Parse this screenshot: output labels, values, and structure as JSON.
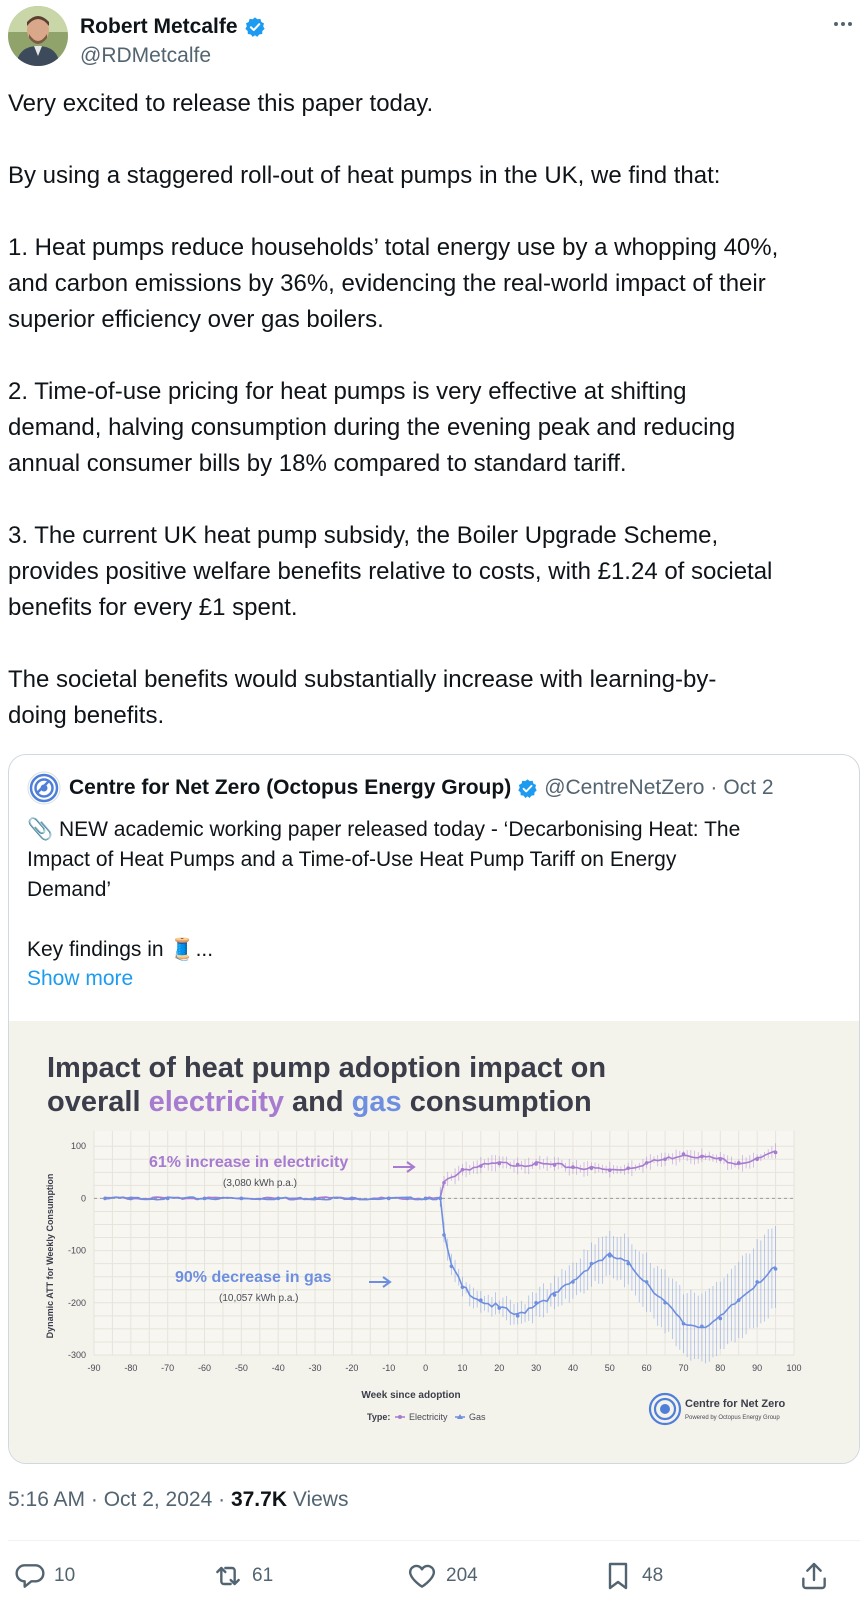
{
  "author": {
    "name": "Robert Metcalfe",
    "handle": "@RDMetcalfe"
  },
  "tweet": {
    "paragraphs": [
      [
        "Very excited to release this paper today."
      ],
      [
        "By using a staggered roll-out of heat pumps in the UK, we find that:"
      ],
      [
        "1. Heat pumps reduce households’ total energy use by a whopping 40%,",
        "and carbon emissions by 36%, evidencing the real-world impact of their",
        "superior efficiency over gas boilers."
      ],
      [
        "2. Time-of-use pricing for heat pumps is very effective at shifting",
        "demand, halving consumption during the evening peak and reducing",
        "annual consumer bills by 18% compared to standard tariff."
      ],
      [
        "3. The current UK heat pump subsidy, the Boiler Upgrade Scheme,",
        "provides positive welfare benefits relative to costs, with £1.24 of societal",
        "benefits for every £1 spent."
      ],
      [
        "The societal benefits would substantially increase with learning-by-",
        "doing benefits."
      ]
    ]
  },
  "quote": {
    "name": "Centre for Net Zero (Octopus Energy Group)",
    "handle": "@CentreNetZero",
    "separator": "·",
    "date": "Oct 2",
    "lines": [
      "📎 NEW academic working paper released today -  ‘Decarbonising Heat: The",
      "Impact of Heat Pumps and a Time-of-Use Heat Pump Tariff on Energy",
      "Demand’",
      "",
      "Key findings in 🧵..."
    ],
    "show_more": "Show more"
  },
  "media": {
    "title_line1": "Impact of heat pump adoption impact on",
    "title_l2_a": "overall ",
    "title_l2_elec": "electricity",
    "title_l2_b": " and ",
    "title_l2_gas": "gas",
    "title_l2_c": " consumption",
    "brand_name": "Centre for Net Zero",
    "brand_sub": "Powered by Octopus Energy Group"
  },
  "chart_data": {
    "type": "line",
    "title": "Impact of heat pump adoption impact on overall electricity and gas consumption",
    "xlabel": "Week since adoption",
    "ylabel": "Dynamic ATT for Weekly Consumption",
    "xlim": [
      -90,
      100
    ],
    "ylim": [
      -300,
      110
    ],
    "x_ticks": [
      -90,
      -80,
      -70,
      -60,
      -50,
      -40,
      -30,
      -20,
      -10,
      0,
      10,
      20,
      30,
      40,
      50,
      60,
      70,
      80,
      90,
      100
    ],
    "y_ticks": [
      100,
      0,
      -100,
      -200,
      -300
    ],
    "legend_title": "Type:",
    "legend": [
      "Electricity",
      "Gas"
    ],
    "legend_position": "bottom",
    "grid": true,
    "annotations": [
      {
        "text": "61% increase in electricity",
        "sub": "(3,080 kWh p.a.)",
        "series": "Electricity"
      },
      {
        "text": "90% decrease in gas",
        "sub": "(10,057 kWh p.a.)",
        "series": "Gas"
      }
    ],
    "series": [
      {
        "name": "Electricity",
        "color": "#a67bd0",
        "x": [
          -87,
          -80,
          -70,
          -60,
          -50,
          -40,
          -30,
          -20,
          -10,
          -5,
          0,
          4,
          5,
          10,
          15,
          20,
          25,
          30,
          35,
          40,
          45,
          50,
          55,
          60,
          65,
          70,
          75,
          80,
          85,
          90,
          95
        ],
        "y": [
          0,
          0,
          0,
          0,
          0,
          0,
          0,
          0,
          0,
          0,
          0,
          0,
          30,
          55,
          62,
          67,
          65,
          66,
          64,
          60,
          58,
          54,
          58,
          68,
          75,
          85,
          80,
          75,
          68,
          75,
          88
        ]
      },
      {
        "name": "Gas",
        "color": "#6e8ee0",
        "x": [
          -87,
          -80,
          -70,
          -60,
          -50,
          -40,
          -30,
          -20,
          -10,
          -5,
          0,
          4,
          5,
          7,
          10,
          15,
          20,
          25,
          30,
          35,
          40,
          45,
          50,
          55,
          60,
          65,
          70,
          75,
          80,
          85,
          90,
          95
        ],
        "y": [
          0,
          0,
          0,
          0,
          0,
          0,
          0,
          0,
          0,
          0,
          0,
          0,
          -70,
          -130,
          -170,
          -195,
          -210,
          -225,
          -200,
          -185,
          -160,
          -125,
          -110,
          -125,
          -160,
          -200,
          -240,
          -245,
          -230,
          -195,
          -160,
          -135
        ]
      }
    ]
  },
  "timestamp": {
    "time": "5:16 AM · Oct 2, 2024 · ",
    "views_count": "37.7K",
    "views_label": " Views"
  },
  "actions": {
    "replies": "10",
    "reposts": "61",
    "likes": "204",
    "bookmarks": "48"
  },
  "colors": {
    "verified": "#1d9bf0",
    "link": "#1d9bf0",
    "electricity": "#a67bd0",
    "gas": "#6e8ee0"
  }
}
